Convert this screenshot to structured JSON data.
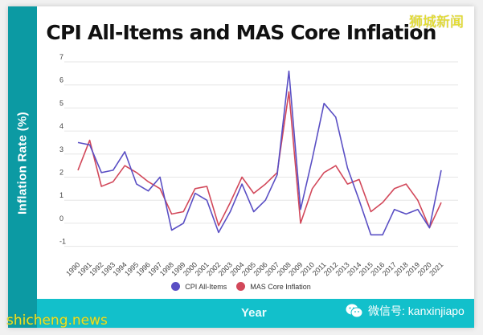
{
  "watermarks": {
    "top_right": "狮城新闻",
    "bottom_left": "shicheng.news",
    "wechat": "微信号: kanxinjiapo"
  },
  "chart_data": {
    "type": "line",
    "title": "CPI All-Items and MAS Core Inflation",
    "xlabel": "Year",
    "ylabel": "Inflation Rate (%)",
    "ylim": [
      -1,
      7
    ],
    "yticks": [
      -1,
      0,
      1,
      2,
      3,
      4,
      5,
      6,
      7
    ],
    "grid": true,
    "legend_position": "bottom",
    "categories": [
      "1990",
      "1991",
      "1992",
      "1993",
      "1994",
      "1995",
      "1996",
      "1997",
      "1998",
      "1999",
      "2000",
      "2001",
      "2002",
      "2003",
      "2004",
      "2005",
      "2006",
      "2007",
      "2008",
      "2009",
      "2010",
      "2011",
      "2012",
      "2013",
      "2014",
      "2015",
      "2016",
      "2017",
      "2018",
      "2019",
      "2020",
      "2021"
    ],
    "series": [
      {
        "name": "CPI All-Items",
        "color": "#5a4fc4",
        "values": [
          3.5,
          3.4,
          2.2,
          2.3,
          3.1,
          1.7,
          1.4,
          2.0,
          -0.3,
          0.0,
          1.3,
          1.0,
          -0.4,
          0.5,
          1.7,
          0.5,
          1.0,
          2.1,
          6.6,
          0.6,
          2.8,
          5.2,
          4.6,
          2.4,
          1.0,
          -0.5,
          -0.5,
          0.6,
          0.4,
          0.6,
          -0.2,
          2.3
        ]
      },
      {
        "name": "MAS Core Inflation",
        "color": "#d2485a",
        "values": [
          2.3,
          3.6,
          1.6,
          1.8,
          2.5,
          2.2,
          1.8,
          1.5,
          0.4,
          0.5,
          1.5,
          1.6,
          -0.1,
          0.9,
          2.0,
          1.3,
          1.7,
          2.2,
          5.7,
          0.0,
          1.5,
          2.2,
          2.5,
          1.7,
          1.9,
          0.5,
          0.9,
          1.5,
          1.7,
          1.0,
          -0.2,
          0.9
        ]
      }
    ]
  }
}
